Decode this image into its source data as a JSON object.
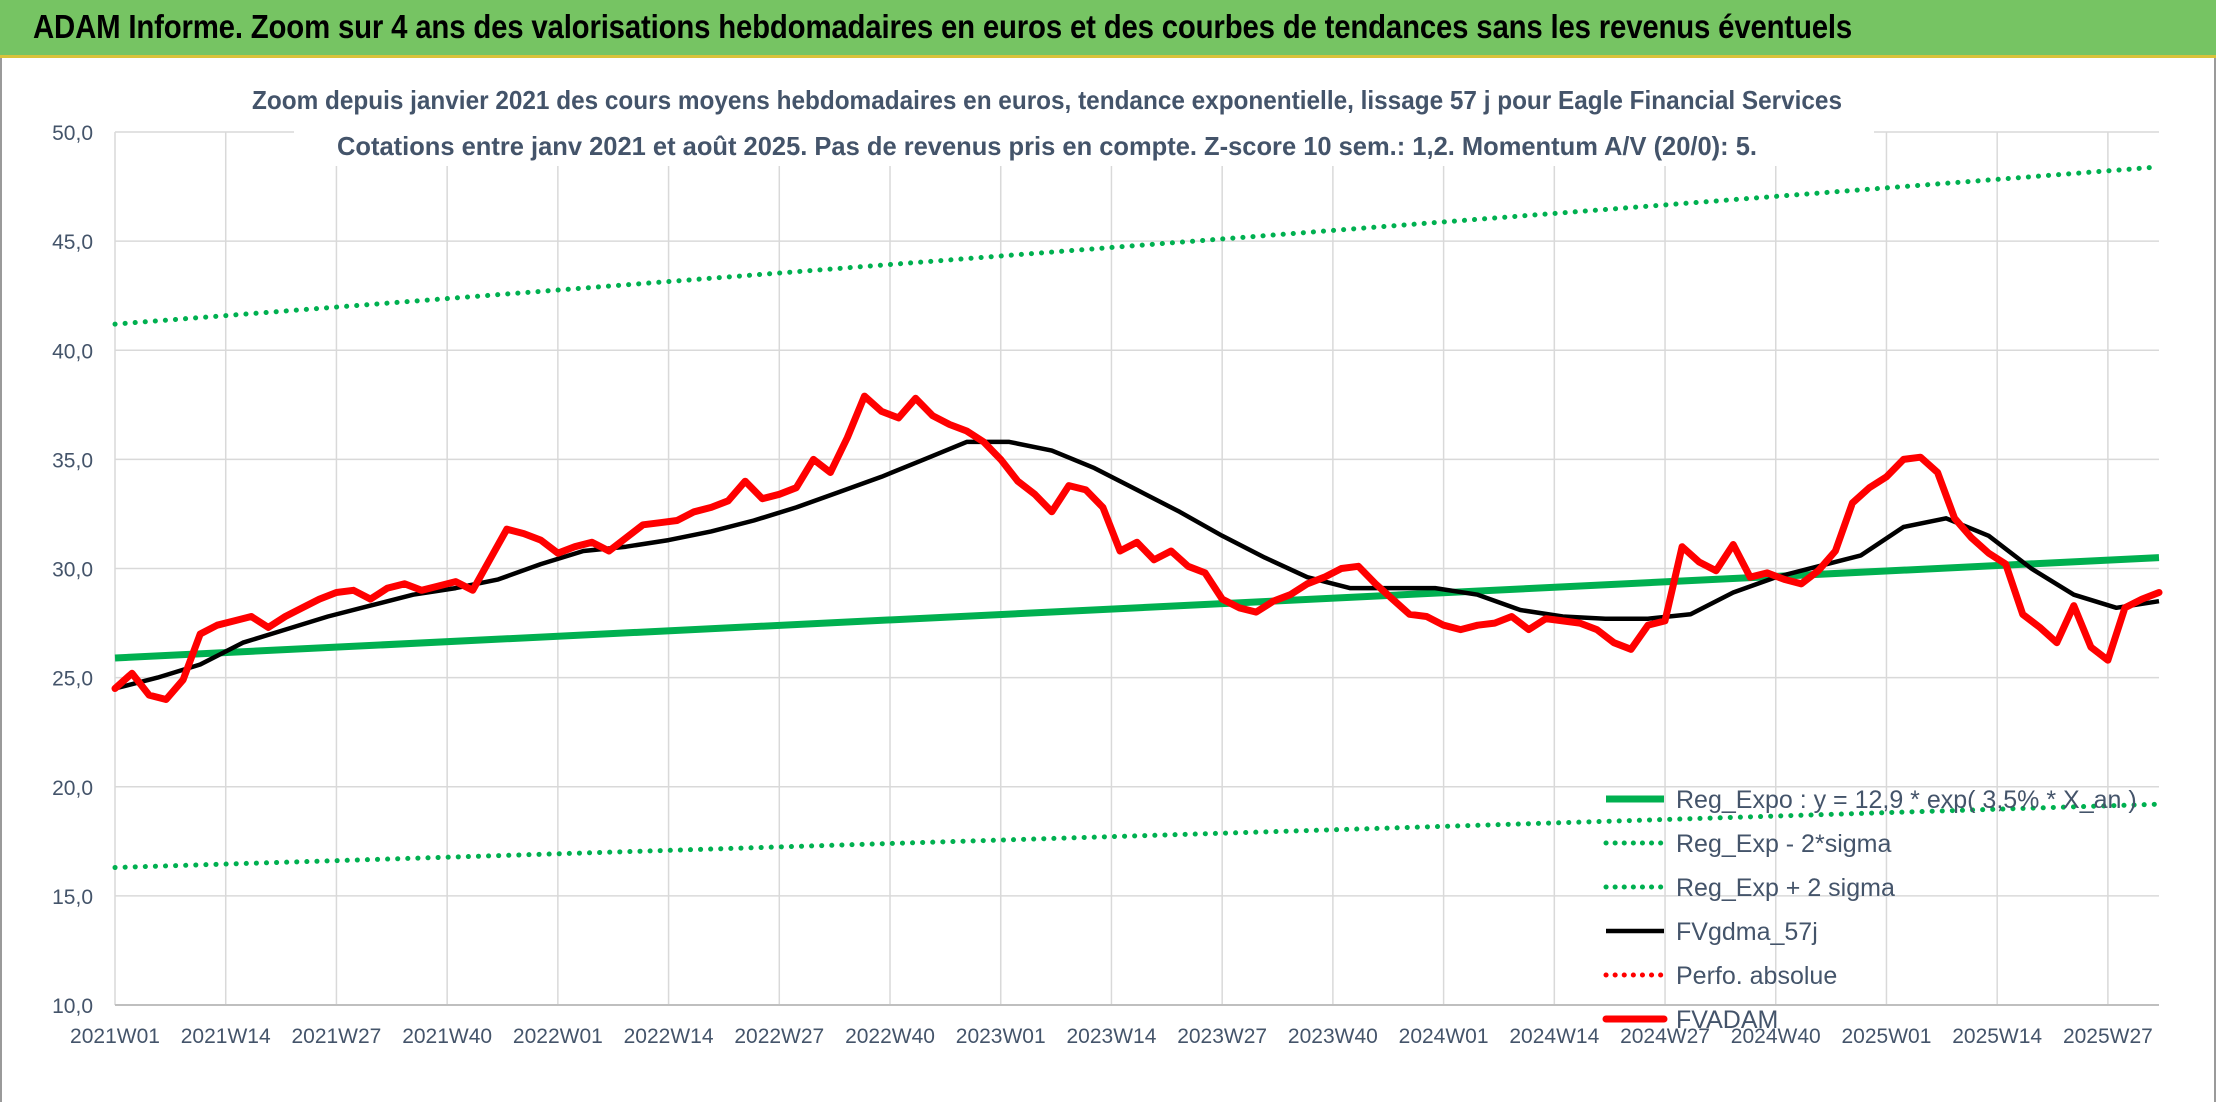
{
  "banner": {
    "title": "ADAM Informe. Zoom sur 4 ans des valorisations hebdomadaires en euros et des courbes de tendances sans les revenus éventuels"
  },
  "colors": {
    "banner_bg": "#76c463",
    "trend": "#00b050",
    "smooth": "#000000",
    "price": "#ff0000",
    "axis_text": "#44546a"
  },
  "chart_data": {
    "type": "line",
    "title": "Zoom depuis janvier 2021 des cours moyens hebdomadaires en euros, tendance exponentielle, lissage 57 j pour Eagle Financial Services",
    "subtitle": "Cotations entre janv 2021 et août 2025. Pas de revenus pris en compte. Z-score 10 sem.: 1,2. Momentum A/V (20/0): 5.",
    "xlabel": "",
    "ylabel": "",
    "ylim": [
      10,
      50
    ],
    "y_ticks": [
      "10,0",
      "15,0",
      "20,0",
      "25,0",
      "30,0",
      "35,0",
      "40,0",
      "45,0",
      "50,0"
    ],
    "x_ticks": [
      "2021W01",
      "2021W14",
      "2021W27",
      "2021W40",
      "2022W01",
      "2022W14",
      "2022W27",
      "2022W40",
      "2023W01",
      "2023W14",
      "2023W27",
      "2023W40",
      "2024W01",
      "2024W14",
      "2024W27",
      "2024W40",
      "2025W01",
      "2025W14",
      "2025W27"
    ],
    "x_range_weeks": [
      0,
      240
    ],
    "grid": true,
    "legend_position": "bottom-right",
    "series": [
      {
        "name": "Reg_Expo : y = 12,9 * exp( 3,5% *  X_an )",
        "style": "solid",
        "color": "#00b050",
        "x": [
          0,
          240
        ],
        "y": [
          25.9,
          30.5
        ]
      },
      {
        "name": "Reg_Exp - 2*sigma",
        "style": "dotted",
        "color": "#00b050",
        "x": [
          0,
          240
        ],
        "y": [
          16.3,
          19.2
        ]
      },
      {
        "name": "Reg_Exp + 2 sigma",
        "style": "dotted",
        "color": "#00b050",
        "x": [
          0,
          240
        ],
        "y": [
          41.2,
          48.4
        ]
      },
      {
        "name": "FVgdma_57j",
        "style": "solid",
        "color": "#000000",
        "x": [
          0,
          5,
          10,
          15,
          20,
          25,
          30,
          35,
          40,
          45,
          50,
          55,
          60,
          65,
          70,
          75,
          80,
          85,
          90,
          95,
          100,
          105,
          110,
          115,
          120,
          125,
          130,
          135,
          140,
          145,
          150,
          155,
          160,
          165,
          170,
          175,
          180,
          185,
          190,
          195,
          200,
          205,
          210,
          215,
          220,
          225,
          230,
          235,
          240
        ],
        "y": [
          24.5,
          25.0,
          25.6,
          26.6,
          27.2,
          27.8,
          28.3,
          28.8,
          29.1,
          29.5,
          30.2,
          30.8,
          31.0,
          31.3,
          31.7,
          32.2,
          32.8,
          33.5,
          34.2,
          35.0,
          35.8,
          35.8,
          35.4,
          34.6,
          33.6,
          32.6,
          31.5,
          30.5,
          29.6,
          29.1,
          29.1,
          29.1,
          28.8,
          28.1,
          27.8,
          27.7,
          27.7,
          27.9,
          28.9,
          29.6,
          30.1,
          30.6,
          31.9,
          32.3,
          31.5,
          30.0,
          28.8,
          28.2,
          28.5
        ]
      },
      {
        "name": "Perfo. absolue",
        "style": "dotted",
        "color": "#ff0000",
        "x": [],
        "y": []
      },
      {
        "name": "FVADAM",
        "style": "solid-thick",
        "color": "#ff0000",
        "x": [
          0,
          2,
          4,
          6,
          8,
          10,
          12,
          14,
          16,
          18,
          20,
          22,
          24,
          26,
          28,
          30,
          32,
          34,
          36,
          38,
          40,
          42,
          44,
          46,
          48,
          50,
          52,
          54,
          56,
          58,
          60,
          62,
          64,
          66,
          68,
          70,
          72,
          74,
          76,
          78,
          80,
          82,
          84,
          86,
          88,
          90,
          92,
          94,
          96,
          98,
          100,
          102,
          104,
          106,
          108,
          110,
          112,
          114,
          116,
          118,
          120,
          122,
          124,
          126,
          128,
          130,
          132,
          134,
          136,
          138,
          140,
          142,
          144,
          146,
          148,
          150,
          152,
          154,
          156,
          158,
          160,
          162,
          164,
          166,
          168,
          170,
          172,
          174,
          176,
          178,
          180,
          182,
          184,
          186,
          188,
          190,
          192,
          194,
          196,
          198,
          200,
          202,
          204,
          206,
          208,
          210,
          212,
          214,
          216,
          218,
          220,
          222,
          224,
          226,
          228,
          230,
          232,
          234,
          236,
          238,
          240
        ],
        "y": [
          24.5,
          25.2,
          24.2,
          24.0,
          24.9,
          27.0,
          27.4,
          27.6,
          27.8,
          27.3,
          27.8,
          28.2,
          28.6,
          28.9,
          29.0,
          28.6,
          29.1,
          29.3,
          29.0,
          29.2,
          29.4,
          29.0,
          30.4,
          31.8,
          31.6,
          31.3,
          30.7,
          31.0,
          31.2,
          30.8,
          31.4,
          32.0,
          32.1,
          32.2,
          32.6,
          32.8,
          33.1,
          34.0,
          33.2,
          33.4,
          33.7,
          35.0,
          34.4,
          36.0,
          37.9,
          37.2,
          36.9,
          37.8,
          37.0,
          36.6,
          36.3,
          35.8,
          35.0,
          34.0,
          33.4,
          32.6,
          33.8,
          33.6,
          32.8,
          30.8,
          31.2,
          30.4,
          30.8,
          30.1,
          29.8,
          28.6,
          28.2,
          28.0,
          28.5,
          28.8,
          29.3,
          29.6,
          30.0,
          30.1,
          29.3,
          28.6,
          27.9,
          27.8,
          27.4,
          27.2,
          27.4,
          27.5,
          27.8,
          27.2,
          27.7,
          27.6,
          27.5,
          27.2,
          26.6,
          26.3,
          27.4,
          27.6,
          31.0,
          30.3,
          29.9,
          31.1,
          29.6,
          29.8,
          29.5,
          29.3,
          29.9,
          30.8,
          33.0,
          33.7,
          34.2,
          35.0,
          35.1,
          34.4,
          32.3,
          31.4,
          30.7,
          30.2,
          27.9,
          27.3,
          26.6,
          28.3,
          26.4,
          25.8,
          28.2,
          28.6,
          28.9
        ]
      }
    ]
  }
}
